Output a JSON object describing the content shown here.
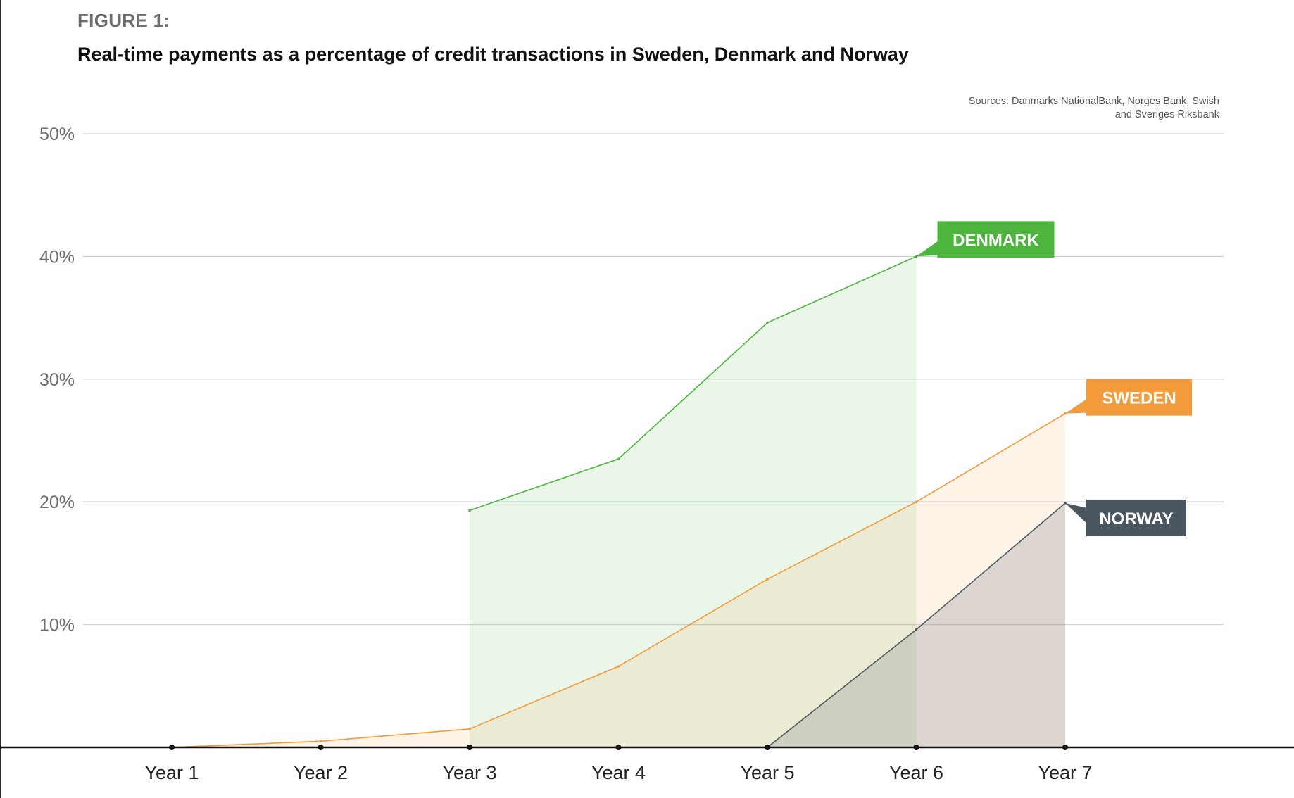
{
  "figure_label": "FIGURE 1:",
  "title": "Real-time payments as a percentage of credit transactions in Sweden, Denmark and Norway",
  "sources": "Sources: Danmarks NationalBank, Norges Bank, Swish and Sveriges Riksbank",
  "colors": {
    "denmark": "#4db53e",
    "sweden": "#f39a3a",
    "norway": "#4a5660",
    "grid": "#cfd3d8",
    "axis": "#111111"
  },
  "chart_data": {
    "type": "area",
    "categories": [
      "Year 1",
      "Year 2",
      "Year 3",
      "Year 4",
      "Year 5",
      "Year 6",
      "Year 7"
    ],
    "y_ticks": [
      "10%",
      "20%",
      "30%",
      "40%",
      "50%"
    ],
    "ylim": [
      0,
      50
    ],
    "grid": true,
    "series": [
      {
        "name": "DENMARK",
        "values": [
          null,
          null,
          19.3,
          23.5,
          34.6,
          40.0,
          null
        ]
      },
      {
        "name": "SWEDEN",
        "values": [
          0,
          0.5,
          1.5,
          6.6,
          13.7,
          20.0,
          27.2
        ]
      },
      {
        "name": "NORWAY",
        "values": [
          null,
          null,
          null,
          null,
          0,
          9.6,
          19.9
        ]
      }
    ],
    "xlabel": "",
    "ylabel": ""
  }
}
